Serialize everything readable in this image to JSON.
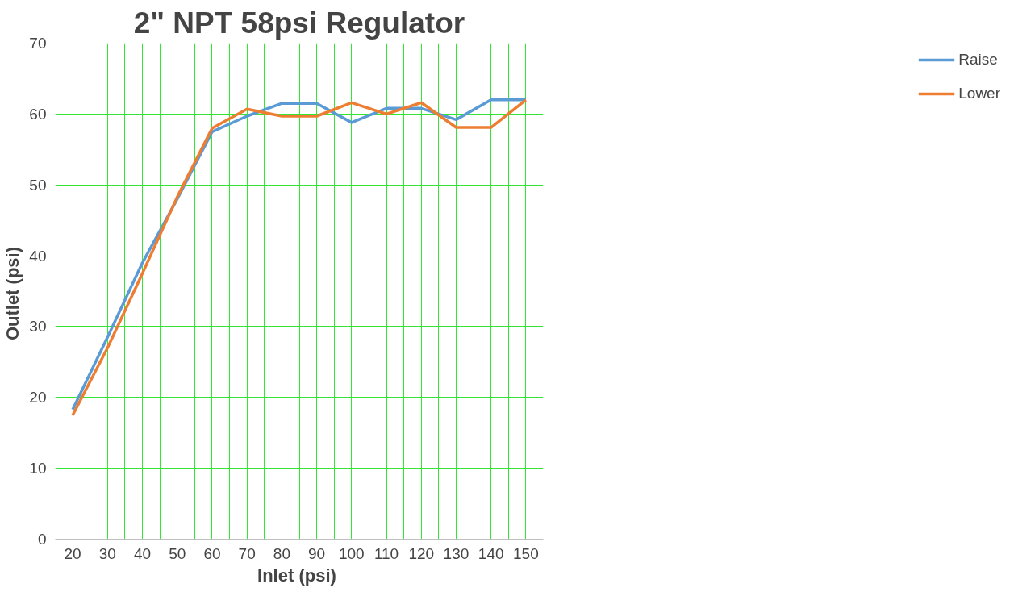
{
  "chart_data": {
    "type": "line",
    "title": "2\" NPT 58psi Regulator",
    "xlabel": "Inlet  (psi)",
    "ylabel": "Outlet  (psi)",
    "x": [
      20,
      30,
      40,
      50,
      60,
      70,
      80,
      90,
      100,
      110,
      120,
      130,
      140,
      150
    ],
    "series": [
      {
        "name": "Raise",
        "color": "#5b9bd5",
        "values": [
          18.3,
          28.5,
          39,
          48,
          57.5,
          59.7,
          61.5,
          61.5,
          58.8,
          60.8,
          60.8,
          59.2,
          62,
          62
        ]
      },
      {
        "name": "Lower",
        "color": "#ed7d31",
        "values": [
          17.5,
          27,
          37.5,
          48.3,
          58,
          60.7,
          59.7,
          59.7,
          61.6,
          60,
          61.6,
          58.1,
          58.1,
          62
        ]
      }
    ],
    "xlim": [
      15,
      155
    ],
    "xticks": [
      20,
      {
        "value": 25,
        "label": null
      },
      30,
      {
        "value": 35,
        "label": null
      },
      40,
      {
        "value": 45,
        "label": null
      },
      50,
      {
        "value": 55,
        "label": null
      },
      60,
      {
        "value": 65,
        "label": null
      },
      70,
      {
        "value": 75,
        "label": null
      },
      80,
      {
        "value": 85,
        "label": null
      },
      90,
      {
        "value": 95,
        "label": null
      },
      100,
      {
        "value": 105,
        "label": null
      },
      110,
      {
        "value": 115,
        "label": null
      },
      120,
      {
        "value": 125,
        "label": null
      },
      130,
      {
        "value": 135,
        "label": null
      },
      140,
      {
        "value": 145,
        "label": null
      },
      150
    ],
    "ylim": [
      0,
      70
    ],
    "yticks": [
      0,
      10,
      20,
      30,
      40,
      50,
      60,
      70
    ],
    "grid": true,
    "legend": "right",
    "marker": "none",
    "line_style": "solid"
  }
}
